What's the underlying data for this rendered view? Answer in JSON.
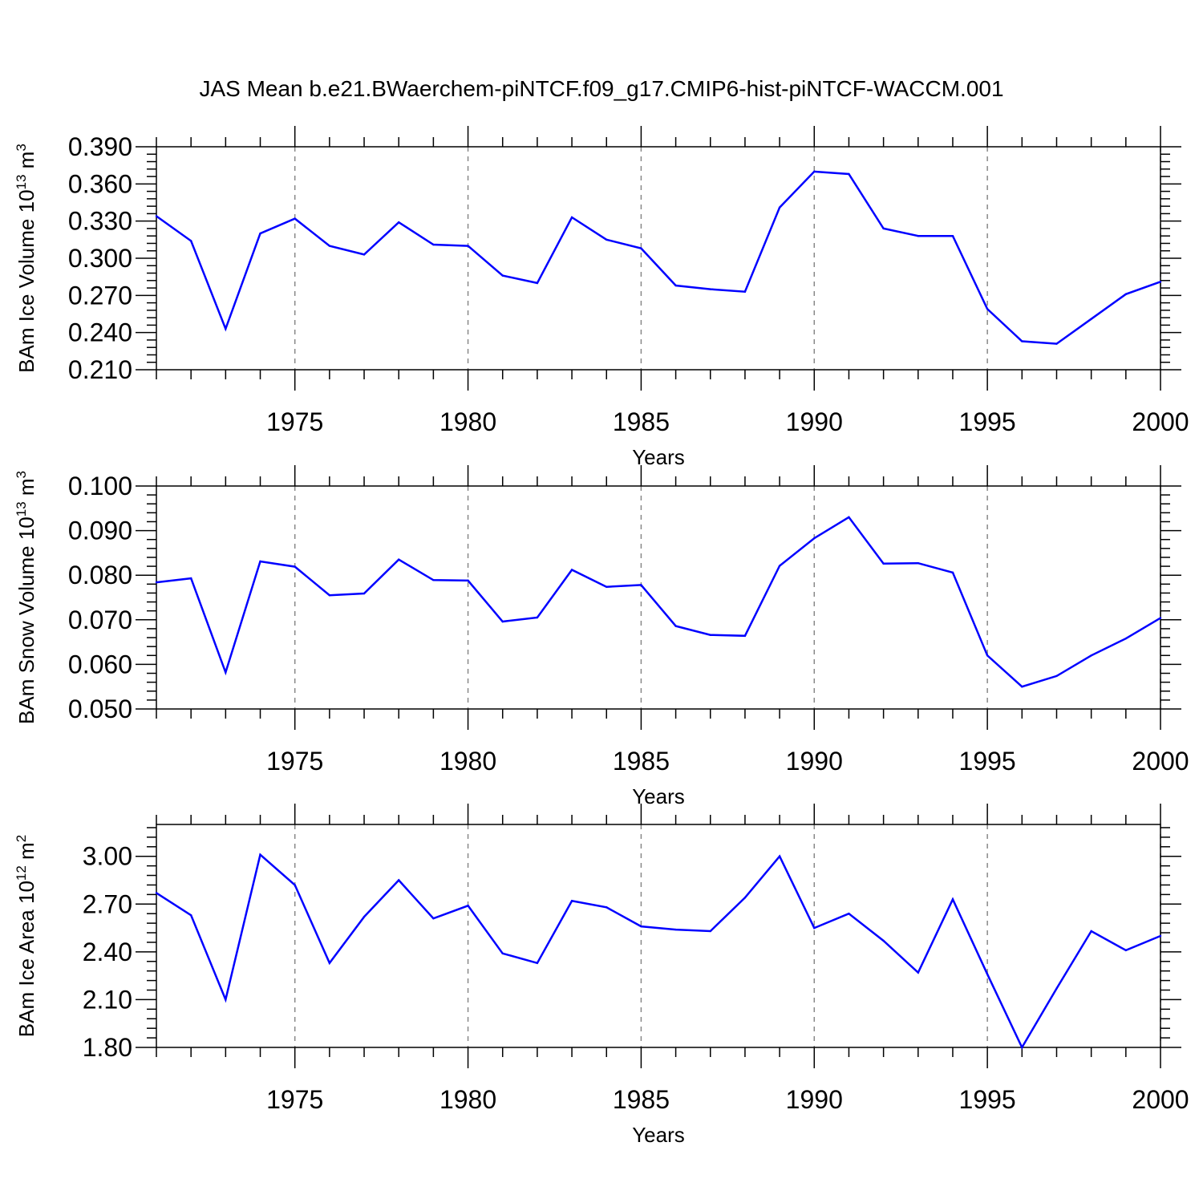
{
  "title": "JAS Mean b.e21.BWaerchem-piNTCF.f09_g17.CMIP6-hist-piNTCF-WACCM.001",
  "colors": {
    "line": "#0000ff",
    "frame": "#000000",
    "grid": "#888888"
  },
  "chart_data": [
    {
      "type": "line",
      "ylabel_prefix": "BAm Ice Volume 10",
      "ylabel_exp": "13",
      "ylabel_suffix": " m",
      "ylabel_unit_exp": "3",
      "xlabel": "Years",
      "xlim": [
        1971,
        2000
      ],
      "ylim": [
        0.21,
        0.39
      ],
      "yticks": [
        "0.210",
        "0.240",
        "0.270",
        "0.300",
        "0.330",
        "0.360",
        "0.390"
      ],
      "xticks": [
        "1975",
        "1980",
        "1985",
        "1990",
        "1995",
        "2000"
      ],
      "grid": "x-dashed",
      "x": [
        1971,
        1972,
        1973,
        1974,
        1975,
        1976,
        1977,
        1978,
        1979,
        1980,
        1981,
        1982,
        1983,
        1984,
        1985,
        1986,
        1987,
        1988,
        1989,
        1990,
        1991,
        1992,
        1993,
        1994,
        1995,
        1996,
        1997,
        1998,
        1999,
        2000
      ],
      "values": [
        0.334,
        0.314,
        0.243,
        0.32,
        0.332,
        0.31,
        0.303,
        0.329,
        0.311,
        0.31,
        0.286,
        0.28,
        0.333,
        0.315,
        0.308,
        0.278,
        0.275,
        0.273,
        0.341,
        0.37,
        0.368,
        0.324,
        0.318,
        0.318,
        0.259,
        0.233,
        0.231,
        0.251,
        0.271,
        0.281
      ]
    },
    {
      "type": "line",
      "ylabel_prefix": "BAm Snow Volume 10",
      "ylabel_exp": "13",
      "ylabel_suffix": " m",
      "ylabel_unit_exp": "3",
      "xlabel": "Years",
      "xlim": [
        1971,
        2000
      ],
      "ylim": [
        0.05,
        0.1
      ],
      "yticks": [
        "0.050",
        "0.060",
        "0.070",
        "0.080",
        "0.090",
        "0.100"
      ],
      "xticks": [
        "1975",
        "1980",
        "1985",
        "1990",
        "1995",
        "2000"
      ],
      "grid": "x-dashed",
      "x": [
        1971,
        1972,
        1973,
        1974,
        1975,
        1976,
        1977,
        1978,
        1979,
        1980,
        1981,
        1982,
        1983,
        1984,
        1985,
        1986,
        1987,
        1988,
        1989,
        1990,
        1991,
        1992,
        1993,
        1994,
        1995,
        1996,
        1997,
        1998,
        1999,
        2000
      ],
      "values": [
        0.0784,
        0.0793,
        0.0582,
        0.0831,
        0.0819,
        0.0755,
        0.0759,
        0.0835,
        0.0789,
        0.0788,
        0.0696,
        0.0705,
        0.0812,
        0.0774,
        0.0778,
        0.0686,
        0.0666,
        0.0664,
        0.0821,
        0.0883,
        0.093,
        0.0826,
        0.0827,
        0.0806,
        0.062,
        0.055,
        0.0574,
        0.062,
        0.0658,
        0.0704
      ]
    },
    {
      "type": "line",
      "ylabel_prefix": "BAm Ice Area 10",
      "ylabel_exp": "12",
      "ylabel_suffix": " m",
      "ylabel_unit_exp": "2",
      "xlabel": "Years",
      "xlim": [
        1971,
        2000
      ],
      "ylim": [
        1.8,
        3.2
      ],
      "yticks": [
        "1.80",
        "2.10",
        "2.40",
        "2.70",
        "3.00"
      ],
      "xticks": [
        "1975",
        "1980",
        "1985",
        "1990",
        "1995",
        "2000"
      ],
      "grid": "x-dashed",
      "x": [
        1971,
        1972,
        1973,
        1974,
        1975,
        1976,
        1977,
        1978,
        1979,
        1980,
        1981,
        1982,
        1983,
        1984,
        1985,
        1986,
        1987,
        1988,
        1989,
        1990,
        1991,
        1992,
        1993,
        1994,
        1995,
        1996,
        1997,
        1998,
        1999,
        2000
      ],
      "values": [
        2.77,
        2.63,
        2.1,
        3.01,
        2.82,
        2.33,
        2.62,
        2.85,
        2.61,
        2.69,
        2.39,
        2.33,
        2.72,
        2.68,
        2.56,
        2.54,
        2.53,
        2.74,
        3.0,
        2.55,
        2.64,
        2.47,
        2.27,
        2.73,
        2.26,
        1.8,
        2.17,
        2.53,
        2.41,
        2.5
      ]
    }
  ]
}
